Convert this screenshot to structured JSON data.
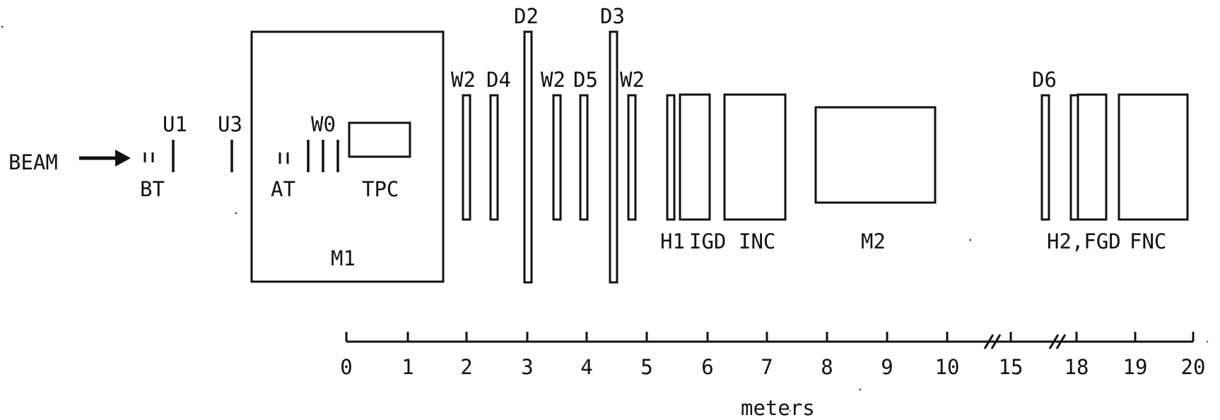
{
  "labels": {
    "beam": "BEAM",
    "bt": "BT",
    "u1": "U1",
    "u3": "U3",
    "at": "AT",
    "w0": "W0",
    "tpc": "TPC",
    "m1": "M1",
    "w2_a": "W2",
    "d4": "D4",
    "d2": "D2",
    "w2_b": "W2",
    "d5": "D5",
    "d3": "D3",
    "w2_c": "W2",
    "h1": "H1",
    "igd": "IGD",
    "inc": "INC",
    "m2": "M2",
    "d6": "D6",
    "h2_fgd": "H2,FGD",
    "fnc": "FNC"
  },
  "scale": {
    "unit": "meters",
    "ticks": [
      "0",
      "1",
      "2",
      "3",
      "4",
      "5",
      "6",
      "7",
      "8",
      "9",
      "10",
      "15",
      "18",
      "19",
      "20"
    ]
  }
}
